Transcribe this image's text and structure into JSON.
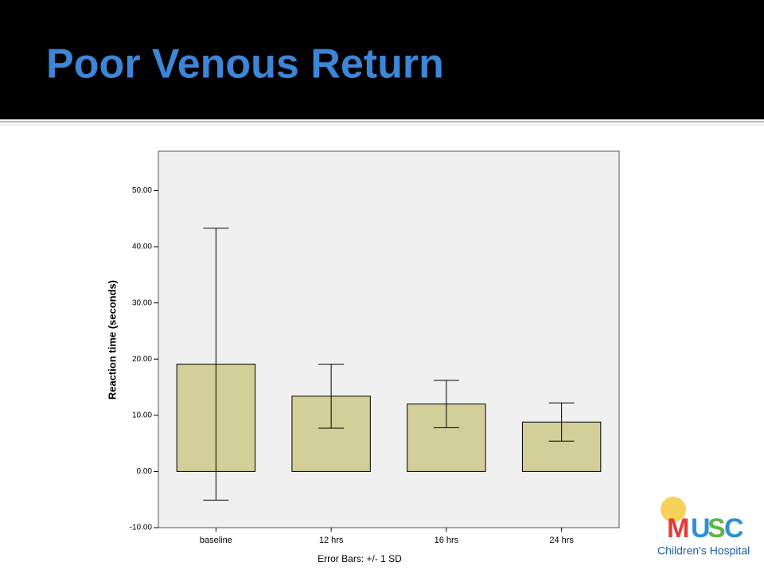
{
  "slide_title": "Poor Venous Return",
  "chart_data": {
    "type": "bar",
    "y_label": "Reaction time (seconds)",
    "note": "Error Bars: +/- 1 SD",
    "categories": [
      "baseline",
      "12 hrs",
      "16 hrs",
      "24 hrs"
    ],
    "values": [
      19.1,
      13.4,
      12.0,
      8.8
    ],
    "errors": [
      24.2,
      5.7,
      4.2,
      3.4
    ],
    "color": "#d3cf98",
    "ylim": [
      -10,
      57
    ],
    "yticks": [
      {
        "value": -10,
        "label": "-10.00"
      },
      {
        "value": 0,
        "label": "0.00"
      },
      {
        "value": 10,
        "label": "10.00"
      },
      {
        "value": 20,
        "label": "20.00"
      },
      {
        "value": 30,
        "label": "30.00"
      },
      {
        "value": 40,
        "label": "40.00"
      },
      {
        "value": 50,
        "label": "50.00"
      }
    ],
    "grid": false
  },
  "logo": {
    "letters": [
      "M",
      "U",
      "S",
      "C"
    ],
    "subtitle": "Children's Hospital"
  }
}
